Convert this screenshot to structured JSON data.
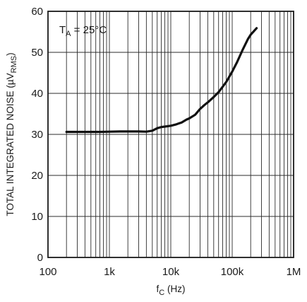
{
  "chart_data": {
    "type": "line",
    "x_scale": "log",
    "xlim": [
      100,
      1000000
    ],
    "ylim": [
      0,
      60
    ],
    "grid": true,
    "x_ticks": [
      {
        "value": 100,
        "label": "100"
      },
      {
        "value": 1000,
        "label": "1k"
      },
      {
        "value": 10000,
        "label": "10k"
      },
      {
        "value": 100000,
        "label": "100k"
      },
      {
        "value": 1000000,
        "label": "1M"
      }
    ],
    "y_ticks": [
      {
        "value": 0,
        "label": "0"
      },
      {
        "value": 10,
        "label": "10"
      },
      {
        "value": 20,
        "label": "20"
      },
      {
        "value": 30,
        "label": "30"
      },
      {
        "value": 40,
        "label": "40"
      },
      {
        "value": 50,
        "label": "50"
      },
      {
        "value": 60,
        "label": "60"
      }
    ],
    "xlabel": {
      "main": "f",
      "sub": "C",
      "rest": " (Hz)"
    },
    "ylabel": {
      "main": "TOTAL INTEGRATED NOISE (µV",
      "sub": "RMS",
      "rest": ")"
    },
    "annotation": {
      "main": "T",
      "sub": "A",
      "rest": " = 25°C"
    },
    "series": [
      {
        "x": [
          200,
          300,
          500,
          700,
          1000,
          1500,
          2000,
          3000,
          4000,
          5000,
          6000,
          7000,
          8000,
          10000,
          12000,
          15000,
          18000,
          20000,
          25000,
          30000,
          35000,
          40000,
          50000,
          60000,
          70000,
          80000,
          100000,
          120000,
          150000,
          180000,
          200000,
          250000
        ],
        "y": [
          30.6,
          30.6,
          30.6,
          30.6,
          30.65,
          30.7,
          30.7,
          30.7,
          30.65,
          30.9,
          31.5,
          31.8,
          31.9,
          32.1,
          32.4,
          32.9,
          33.6,
          33.9,
          34.8,
          36.2,
          37.1,
          37.8,
          39.1,
          40.3,
          41.6,
          42.8,
          45.3,
          47.6,
          50.8,
          53.2,
          54.3,
          55.9
        ]
      }
    ]
  }
}
